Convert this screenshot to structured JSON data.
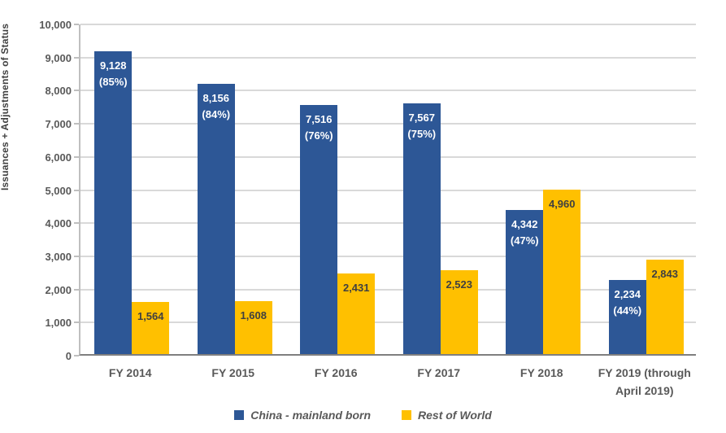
{
  "chart_data": {
    "type": "bar",
    "title": "",
    "ylabel": "Issuances  + Adjustments of Status",
    "xlabel": "",
    "ylim": [
      0,
      10000
    ],
    "ytick_step": 1000,
    "yticks": [
      "0",
      "1,000",
      "2,000",
      "3,000",
      "4,000",
      "5,000",
      "6,000",
      "7,000",
      "8,000",
      "9,000",
      "10,000"
    ],
    "grid": true,
    "legend_position": "bottom",
    "categories": [
      "FY 2014",
      "FY 2015",
      "FY 2016",
      "FY 2017",
      "FY 2018",
      "FY 2019 (through April 2019)"
    ],
    "category_labels_wrapped": [
      [
        "FY 2014"
      ],
      [
        "FY 2015"
      ],
      [
        "FY 2016"
      ],
      [
        "FY 2017"
      ],
      [
        "FY 2018"
      ],
      [
        "FY 2019 (through",
        "April 2019)"
      ]
    ],
    "series": [
      {
        "name": "China - mainland born",
        "color": "#2d5796",
        "label_color": "#ffffff",
        "values": [
          9128,
          8156,
          7516,
          7567,
          4342,
          2234
        ],
        "bar_labels": [
          [
            "9,128",
            "(85%)"
          ],
          [
            "8,156",
            "(84%)"
          ],
          [
            "7,516",
            "(76%)"
          ],
          [
            "7,567",
            "(75%)"
          ],
          [
            "4,342",
            "(47%)"
          ],
          [
            "2,234",
            "(44%)"
          ]
        ]
      },
      {
        "name": "Rest of World",
        "color": "#ffc000",
        "label_color": "#404040",
        "values": [
          1564,
          1608,
          2431,
          2523,
          4960,
          2843
        ],
        "bar_labels": [
          [
            "1,564"
          ],
          [
            "1,608"
          ],
          [
            "2,431"
          ],
          [
            "2,523"
          ],
          [
            "4,960"
          ],
          [
            "2,843"
          ]
        ]
      }
    ],
    "colors": {
      "gridline": "#d9d9d9",
      "axis_x": "#7f7f7f",
      "axis_y": "#bfbfbf",
      "tick_text": "#595959",
      "category_text": "#595959",
      "y_title_text": "#404040",
      "legend_text": "#595959"
    }
  }
}
